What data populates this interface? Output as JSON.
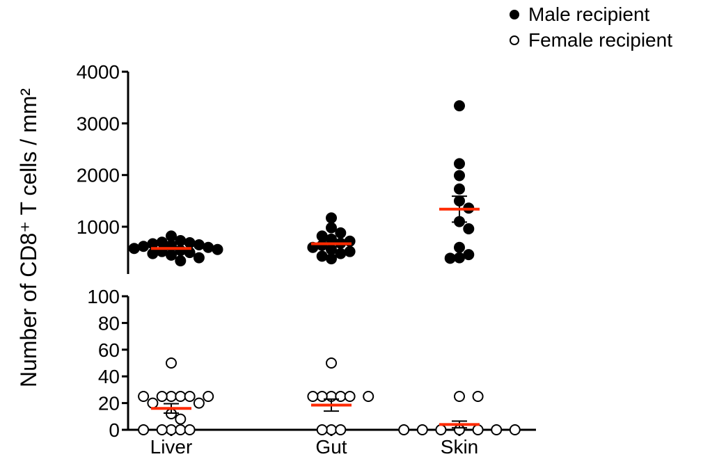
{
  "chart_data": {
    "type": "scatter",
    "title": "",
    "xlabel": "",
    "ylabel": "Number of CD8⁺ T cells / mm²",
    "categories": [
      "Liver",
      "Gut",
      "Skin"
    ],
    "y_axis_break": true,
    "upper_segment": {
      "ylim": [
        0,
        4000
      ],
      "ticks": [
        "1000",
        "2000",
        "3000",
        "4000"
      ]
    },
    "lower_segment": {
      "ylim": [
        0,
        100
      ],
      "ticks": [
        "0",
        "20",
        "40",
        "60",
        "80",
        "100"
      ]
    },
    "legend_position": "top-right",
    "series": [
      {
        "name": "Male recipient",
        "marker": "filled-circle",
        "segment": "upper",
        "points": [
          {
            "category": "Liver",
            "values": [
              820,
              730,
              700,
              690,
              670,
              650,
              640,
              620,
              600,
              580,
              560,
              540,
              520,
              500,
              480,
              450,
              400,
              340
            ]
          },
          {
            "category": "Gut",
            "values": [
              1170,
              980,
              880,
              820,
              760,
              720,
              680,
              640,
              600,
              560,
              520,
              480,
              430,
              380
            ]
          },
          {
            "category": "Skin",
            "values": [
              3340,
              2220,
              1990,
              1730,
              1500,
              1360,
              1100,
              960,
              600,
              460,
              400,
              390
            ]
          }
        ],
        "mean": [
          580,
          670,
          1340
        ],
        "sem": [
          30,
          60,
          250
        ]
      },
      {
        "name": "Female recipient",
        "marker": "open-circle",
        "segment": "lower",
        "points": [
          {
            "category": "Liver",
            "values": [
              50,
              25,
              25,
              25,
              25,
              25,
              25,
              20,
              20,
              12,
              8,
              0,
              0,
              0,
              0,
              0
            ]
          },
          {
            "category": "Gut",
            "values": [
              50,
              25,
              25,
              25,
              25,
              25,
              25,
              0,
              0,
              0
            ]
          },
          {
            "category": "Skin",
            "values": [
              25,
              25,
              0,
              0,
              0,
              0,
              0,
              0,
              0
            ]
          }
        ],
        "mean": [
          16,
          18.5,
          4
        ],
        "sem": [
          3.5,
          4.5,
          2.5
        ]
      }
    ],
    "mean_line_color": "#ff2a00",
    "marker_color": "#000000"
  }
}
